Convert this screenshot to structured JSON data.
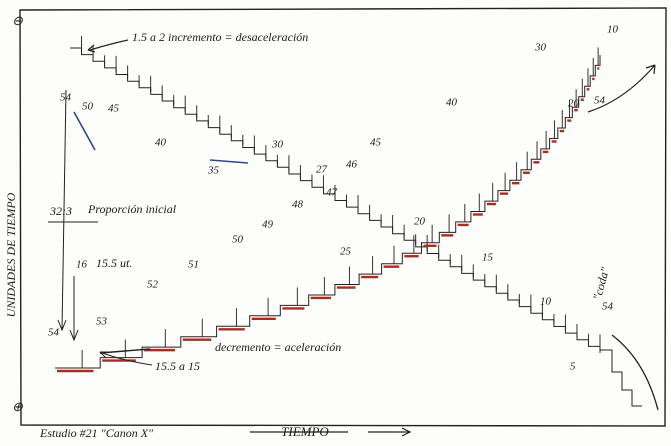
{
  "axes": {
    "top_sign": "⊖",
    "bottom_sign": "⊕",
    "y_label": "UNIDADES DE TIEMPO",
    "x_label": "TIEMPO"
  },
  "caption": "Estudio #21 \"Canon X\"",
  "annotations": {
    "deceleration": "1.5 a 2 incremento = desaceleración",
    "ratio": "32:3",
    "proportion": "Proporción inicial",
    "sixteen": "16",
    "units": "15.5 ut.",
    "acceleration": "decremento = aceleración",
    "change": "15.5 a 15",
    "coda": "\"coda\""
  },
  "descending_labels": [
    "54",
    "50",
    "45",
    "40",
    "35",
    "30",
    "27",
    "25",
    "20",
    "15",
    "10",
    "5",
    "54"
  ],
  "ascending_labels": [
    "54",
    "53",
    "52",
    "51",
    "50",
    "49",
    "48",
    "47",
    "46",
    "45",
    "40",
    "30",
    "20",
    "10",
    "54"
  ]
}
